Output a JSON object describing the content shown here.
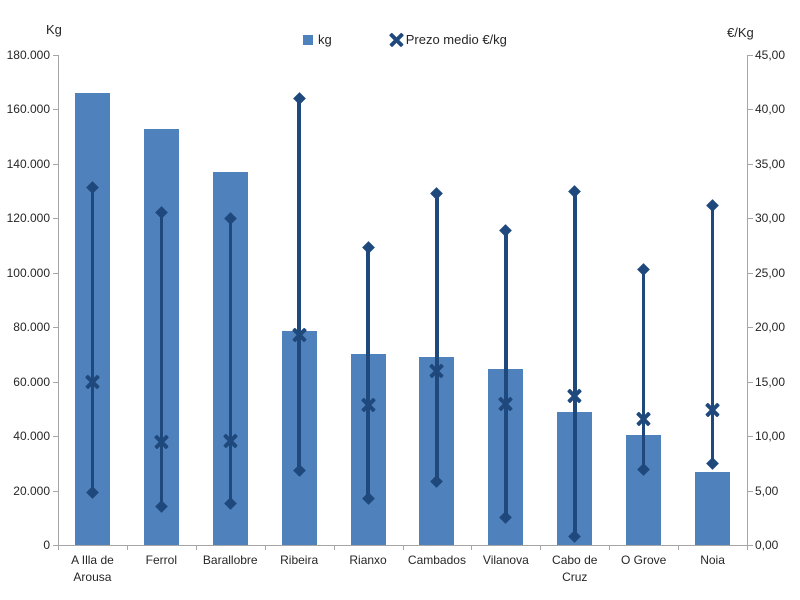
{
  "chart": {
    "left_axis_title": "Kg",
    "right_axis_title": "€/Kg",
    "legend": {
      "kg_label": "kg",
      "prezo_label": "Prezo medio €/kg"
    },
    "colors": {
      "bar": "#4F81BD",
      "line_and_markers": "#1F497D",
      "axis_line": "#A6A6A6",
      "text": "#262626"
    }
  },
  "chart_data": {
    "type": "bar",
    "title": "",
    "categories": [
      "A Illa de Arousa",
      "Ferrol",
      "Barallobre",
      "Ribeira",
      "Rianxo",
      "Cambados",
      "Vilanova",
      "Cabo de Cruz",
      "O Grove",
      "Noia"
    ],
    "series": [
      {
        "name": "kg",
        "type": "bar",
        "axis": "left",
        "values": [
          166000,
          153000,
          137000,
          78500,
          70000,
          69000,
          64500,
          49000,
          40500,
          27000
        ]
      },
      {
        "name": "Prezo medio €/kg",
        "type": "scatter-x",
        "axis": "right",
        "values": [
          15.0,
          9.5,
          9.6,
          19.3,
          12.9,
          16.0,
          13.0,
          13.7,
          11.6,
          12.4
        ]
      },
      {
        "name": "price_range_high",
        "type": "hilo-top",
        "axis": "right",
        "values": [
          32.8,
          30.5,
          30.0,
          41.0,
          27.3,
          32.3,
          28.9,
          32.5,
          25.3,
          31.2
        ]
      },
      {
        "name": "price_range_low",
        "type": "hilo-bottom",
        "axis": "right",
        "values": [
          4.8,
          3.5,
          3.8,
          6.8,
          4.3,
          5.8,
          2.5,
          0.8,
          6.9,
          7.5
        ]
      }
    ],
    "left_axis": {
      "label": "Kg",
      "min": 0,
      "max": 180000,
      "step": 20000,
      "tick_labels": [
        "0",
        "20.000",
        "40.000",
        "60.000",
        "80.000",
        "100.000",
        "120.000",
        "140.000",
        "160.000",
        "180.000"
      ]
    },
    "right_axis": {
      "label": "€/Kg",
      "min": 0,
      "max": 45,
      "step": 5,
      "tick_labels": [
        "0,00",
        "5,00",
        "10,00",
        "15,00",
        "20,00",
        "25,00",
        "30,00",
        "35,00",
        "40,00",
        "45,00"
      ]
    },
    "grid": false,
    "legend_position": "top-center"
  }
}
